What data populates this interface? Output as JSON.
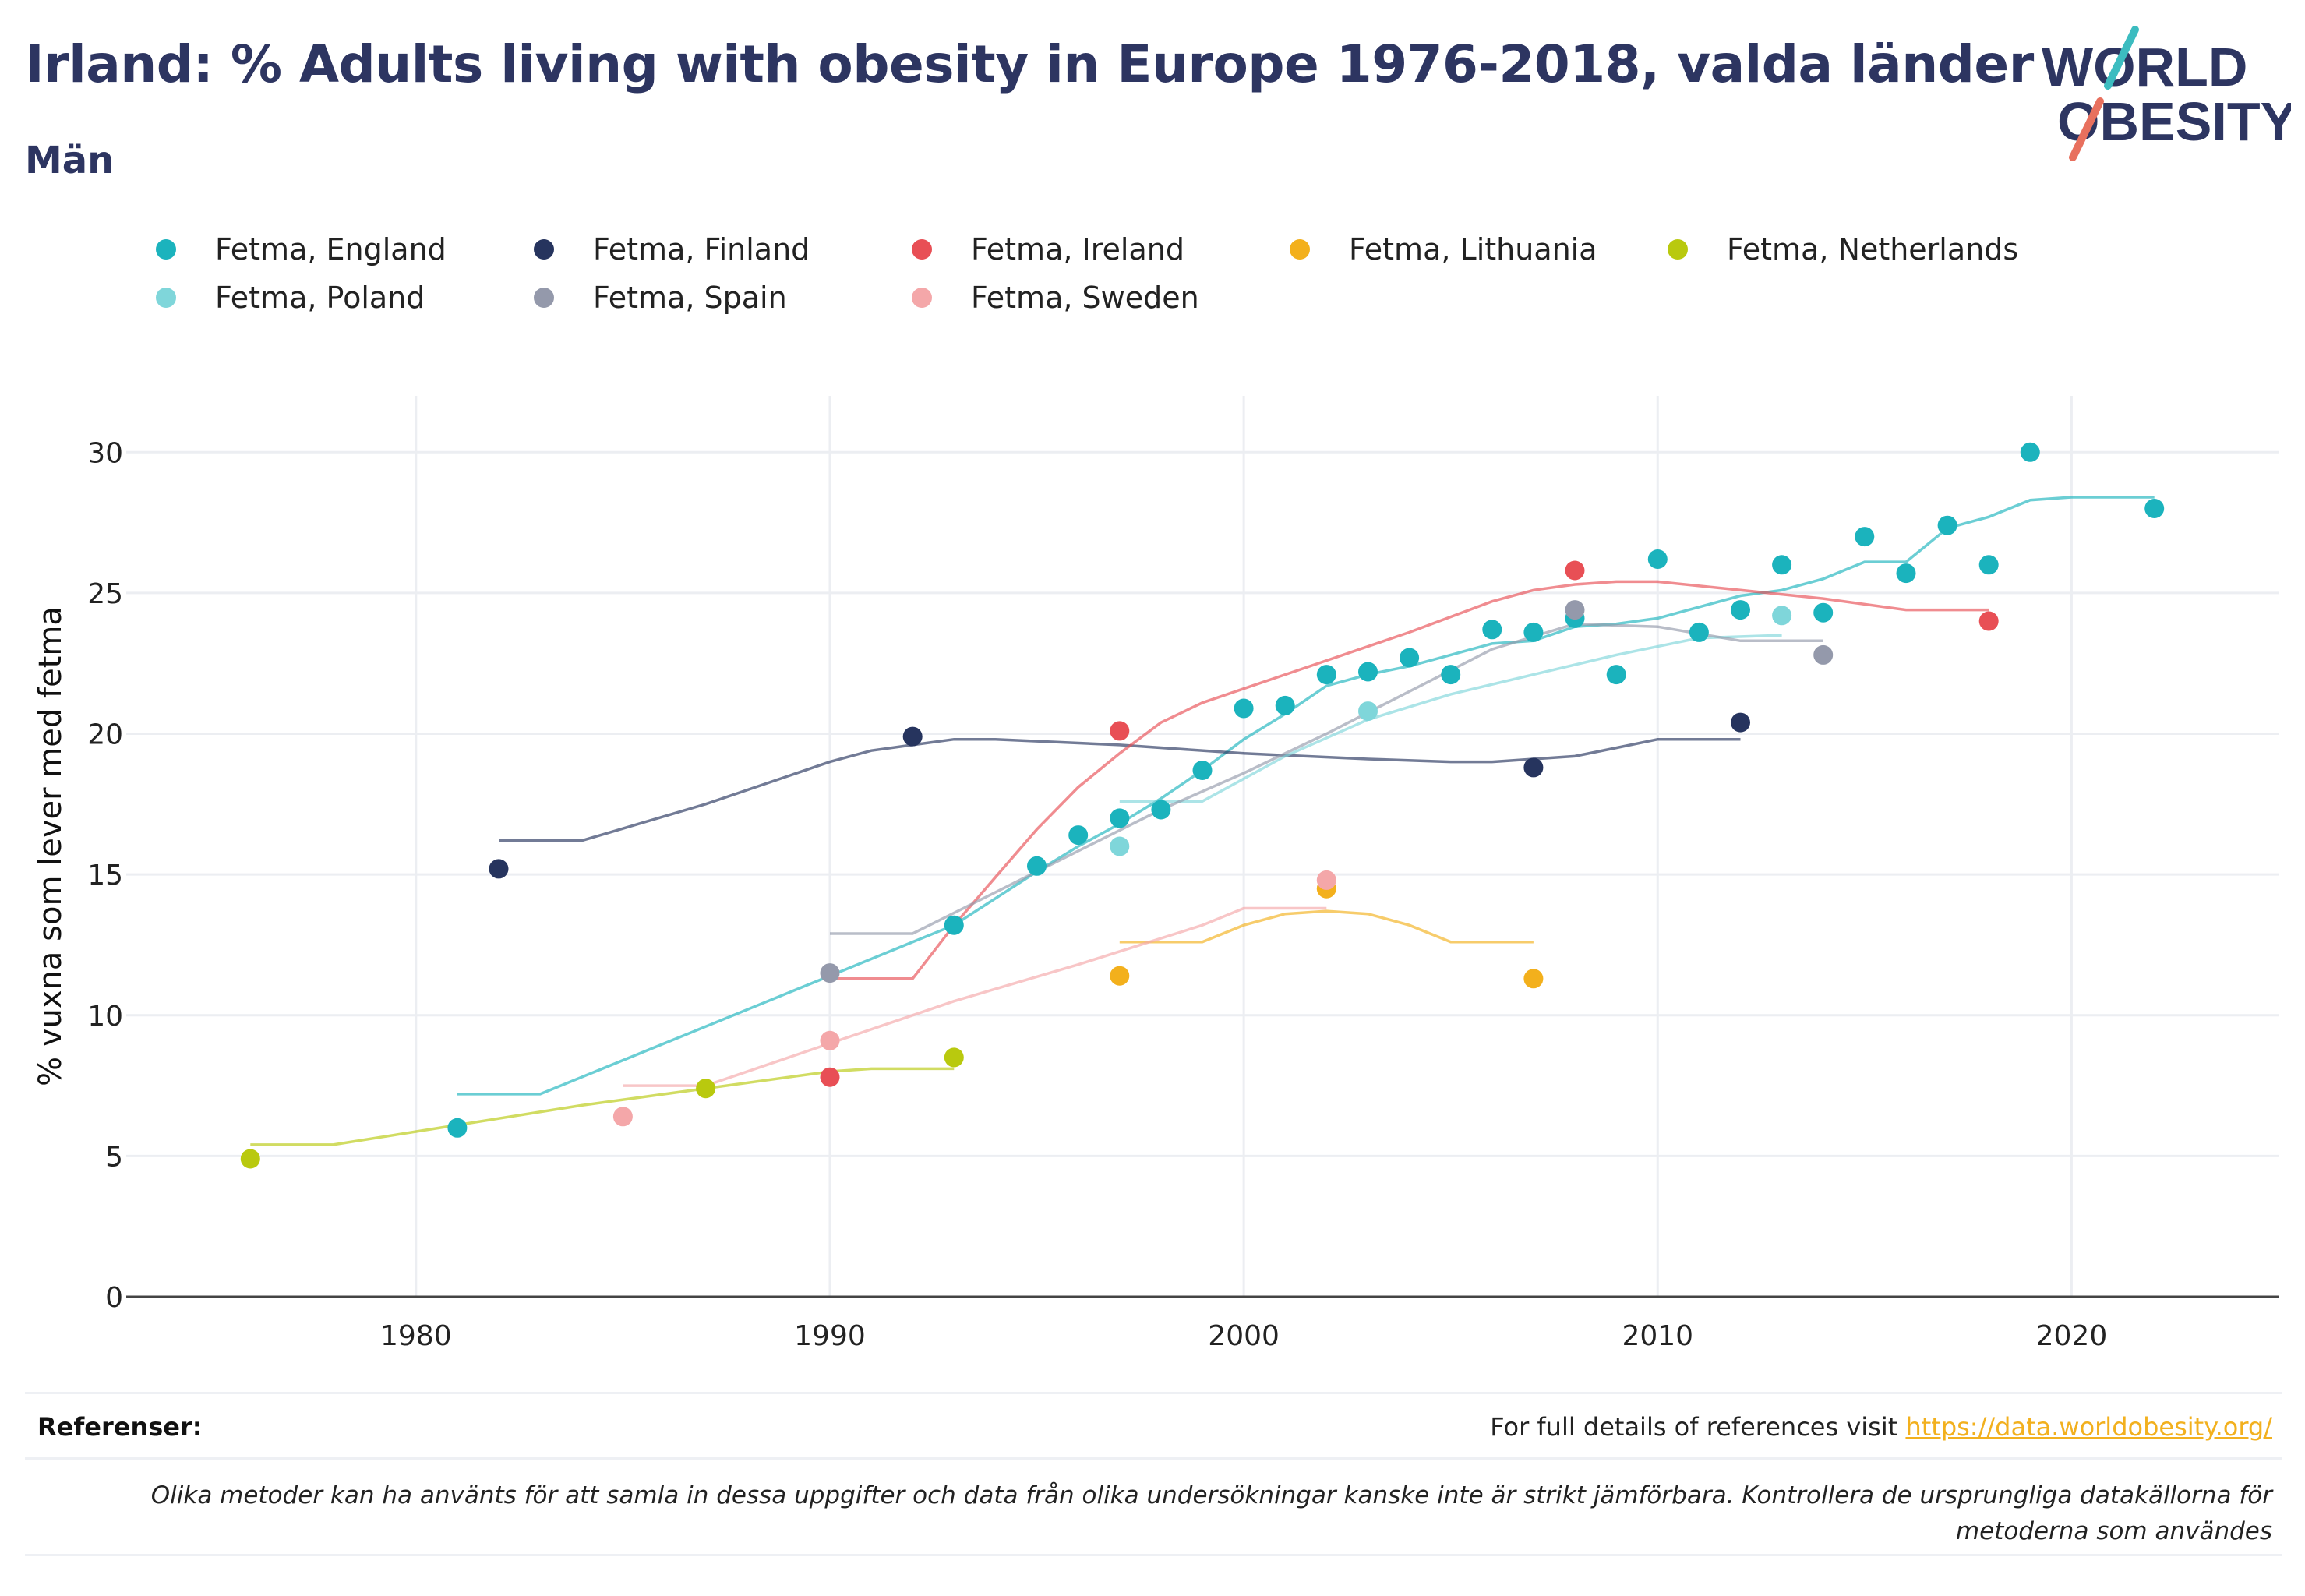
{
  "header": {
    "title": "Irland: % Adults living with obesity in Europe 1976-2018, valda länder",
    "subtitle": "Män"
  },
  "logo": {
    "line1": "WORLD",
    "line2": "OBESITY",
    "slash_colors": [
      "#3cbcc0",
      "#e8705e"
    ]
  },
  "footer": {
    "references_label": "Referenser:",
    "references_text": "For full details of references visit ",
    "references_link": "https://data.worldobesity.org/",
    "disclaimer": "Olika metoder kan ha använts för att samla in dessa uppgifter och data från olika undersökningar kanske inte är strikt jämförbara. Kontrollera de ursprungliga datakällorna för metoderna som användes"
  },
  "chart_data": {
    "type": "scatter",
    "ylabel": "% vuxna som lever med fetma",
    "xlabel": "",
    "xlim": [
      1973,
      2025
    ],
    "ylim": [
      0,
      32
    ],
    "x_ticks": [
      1980,
      1990,
      2000,
      2010,
      2020
    ],
    "y_ticks": [
      0,
      5,
      10,
      15,
      20,
      25,
      30
    ],
    "grid": true,
    "legend_position": "top",
    "series": [
      {
        "name": "Fetma, England",
        "color": "#1bb3bd",
        "points": [
          [
            1981,
            6.0
          ],
          [
            1993,
            13.2
          ],
          [
            1995,
            15.3
          ],
          [
            1996,
            16.4
          ],
          [
            1997,
            17.0
          ],
          [
            1998,
            17.3
          ],
          [
            1999,
            18.7
          ],
          [
            2000,
            20.9
          ],
          [
            2001,
            21.0
          ],
          [
            2002,
            22.1
          ],
          [
            2003,
            22.2
          ],
          [
            2004,
            22.7
          ],
          [
            2005,
            22.1
          ],
          [
            2006,
            23.7
          ],
          [
            2007,
            23.6
          ],
          [
            2008,
            24.1
          ],
          [
            2009,
            22.1
          ],
          [
            2010,
            26.2
          ],
          [
            2011,
            23.6
          ],
          [
            2012,
            24.4
          ],
          [
            2013,
            26.0
          ],
          [
            2014,
            24.3
          ],
          [
            2015,
            27.0
          ],
          [
            2016,
            25.7
          ],
          [
            2017,
            27.4
          ],
          [
            2018,
            26.0
          ],
          [
            2019,
            30.0
          ],
          [
            2022,
            28.0
          ]
        ],
        "trend": [
          [
            1981,
            7.2
          ],
          [
            1983,
            7.2
          ],
          [
            1986,
            9.0
          ],
          [
            1990,
            11.4
          ],
          [
            1992,
            12.6
          ],
          [
            1993,
            13.2
          ],
          [
            1995,
            15.1
          ],
          [
            1996,
            16.0
          ],
          [
            1997,
            16.8
          ],
          [
            1998,
            17.7
          ],
          [
            1999,
            18.7
          ],
          [
            2000,
            19.8
          ],
          [
            2001,
            20.7
          ],
          [
            2002,
            21.7
          ],
          [
            2003,
            22.1
          ],
          [
            2004,
            22.4
          ],
          [
            2005,
            22.8
          ],
          [
            2006,
            23.2
          ],
          [
            2007,
            23.3
          ],
          [
            2008,
            23.8
          ],
          [
            2009,
            23.9
          ],
          [
            2010,
            24.1
          ],
          [
            2011,
            24.5
          ],
          [
            2012,
            24.9
          ],
          [
            2013,
            25.1
          ],
          [
            2014,
            25.5
          ],
          [
            2015,
            26.1
          ],
          [
            2016,
            26.1
          ],
          [
            2017,
            27.3
          ],
          [
            2018,
            27.7
          ],
          [
            2019,
            28.3
          ],
          [
            2020,
            28.4
          ],
          [
            2022,
            28.4
          ]
        ]
      },
      {
        "name": "Fetma, Finland",
        "color": "#26345e",
        "points": [
          [
            1982,
            15.2
          ],
          [
            1992,
            19.9
          ],
          [
            2007,
            18.8
          ],
          [
            2012,
            20.4
          ]
        ],
        "trend": [
          [
            1982,
            16.2
          ],
          [
            1984,
            16.2
          ],
          [
            1987,
            17.5
          ],
          [
            1990,
            19.0
          ],
          [
            1991,
            19.4
          ],
          [
            1992,
            19.6
          ],
          [
            1993,
            19.8
          ],
          [
            1994,
            19.8
          ],
          [
            1997,
            19.6
          ],
          [
            2000,
            19.3
          ],
          [
            2003,
            19.1
          ],
          [
            2005,
            19.0
          ],
          [
            2006,
            19.0
          ],
          [
            2007,
            19.1
          ],
          [
            2008,
            19.2
          ],
          [
            2009,
            19.5
          ],
          [
            2010,
            19.8
          ],
          [
            2012,
            19.8
          ]
        ]
      },
      {
        "name": "Fetma, Ireland",
        "color": "#e84f55",
        "points": [
          [
            1990,
            7.8
          ],
          [
            1997,
            20.1
          ],
          [
            2008,
            25.8
          ],
          [
            2018,
            24.0
          ]
        ],
        "trend": [
          [
            1990,
            11.3
          ],
          [
            1992,
            11.3
          ],
          [
            1993,
            13.2
          ],
          [
            1994,
            14.9
          ],
          [
            1995,
            16.6
          ],
          [
            1996,
            18.1
          ],
          [
            1997,
            19.3
          ],
          [
            1998,
            20.4
          ],
          [
            1999,
            21.1
          ],
          [
            2000,
            21.6
          ],
          [
            2002,
            22.6
          ],
          [
            2004,
            23.6
          ],
          [
            2006,
            24.7
          ],
          [
            2007,
            25.1
          ],
          [
            2008,
            25.3
          ],
          [
            2009,
            25.4
          ],
          [
            2010,
            25.4
          ],
          [
            2012,
            25.1
          ],
          [
            2014,
            24.8
          ],
          [
            2016,
            24.4
          ],
          [
            2018,
            24.4
          ]
        ]
      },
      {
        "name": "Fetma, Lithuania",
        "color": "#f3b01c",
        "points": [
          [
            1997,
            11.4
          ],
          [
            2002,
            14.5
          ],
          [
            2007,
            11.3
          ]
        ],
        "trend": [
          [
            1997,
            12.6
          ],
          [
            1999,
            12.6
          ],
          [
            2000,
            13.2
          ],
          [
            2001,
            13.6
          ],
          [
            2002,
            13.7
          ],
          [
            2003,
            13.6
          ],
          [
            2004,
            13.2
          ],
          [
            2005,
            12.6
          ],
          [
            2007,
            12.6
          ]
        ]
      },
      {
        "name": "Fetma, Netherlands",
        "color": "#b9c90e",
        "points": [
          [
            1976,
            4.9
          ],
          [
            1987,
            7.4
          ],
          [
            1993,
            8.5
          ]
        ],
        "trend": [
          [
            1976,
            5.4
          ],
          [
            1978,
            5.4
          ],
          [
            1981,
            6.1
          ],
          [
            1984,
            6.8
          ],
          [
            1987,
            7.4
          ],
          [
            1990,
            8.0
          ],
          [
            1991,
            8.1
          ],
          [
            1993,
            8.1
          ]
        ]
      },
      {
        "name": "Fetma, Poland",
        "color": "#7fd6da",
        "points": [
          [
            1997,
            16.0
          ],
          [
            2003,
            20.8
          ],
          [
            2013,
            24.2
          ]
        ],
        "trend": [
          [
            1997,
            17.6
          ],
          [
            1999,
            17.6
          ],
          [
            2001,
            19.2
          ],
          [
            2003,
            20.5
          ],
          [
            2005,
            21.4
          ],
          [
            2007,
            22.1
          ],
          [
            2009,
            22.8
          ],
          [
            2011,
            23.4
          ],
          [
            2013,
            23.5
          ]
        ]
      },
      {
        "name": "Fetma, Spain",
        "color": "#9499ab",
        "points": [
          [
            1990,
            11.5
          ],
          [
            2008,
            24.4
          ],
          [
            2014,
            22.8
          ]
        ],
        "trend": [
          [
            1990,
            12.9
          ],
          [
            1992,
            12.9
          ],
          [
            1995,
            15.1
          ],
          [
            1998,
            17.3
          ],
          [
            2000,
            18.6
          ],
          [
            2002,
            20.0
          ],
          [
            2004,
            21.5
          ],
          [
            2006,
            23.0
          ],
          [
            2008,
            23.9
          ],
          [
            2010,
            23.8
          ],
          [
            2012,
            23.3
          ],
          [
            2014,
            23.3
          ]
        ]
      },
      {
        "name": "Fetma, Sweden",
        "color": "#f4a7a9",
        "points": [
          [
            1985,
            6.4
          ],
          [
            1990,
            9.1
          ],
          [
            2002,
            14.8
          ]
        ],
        "trend": [
          [
            1985,
            7.5
          ],
          [
            1987,
            7.5
          ],
          [
            1990,
            9.0
          ],
          [
            1993,
            10.5
          ],
          [
            1996,
            11.8
          ],
          [
            1999,
            13.2
          ],
          [
            2000,
            13.8
          ],
          [
            2002,
            13.8
          ]
        ]
      }
    ]
  }
}
